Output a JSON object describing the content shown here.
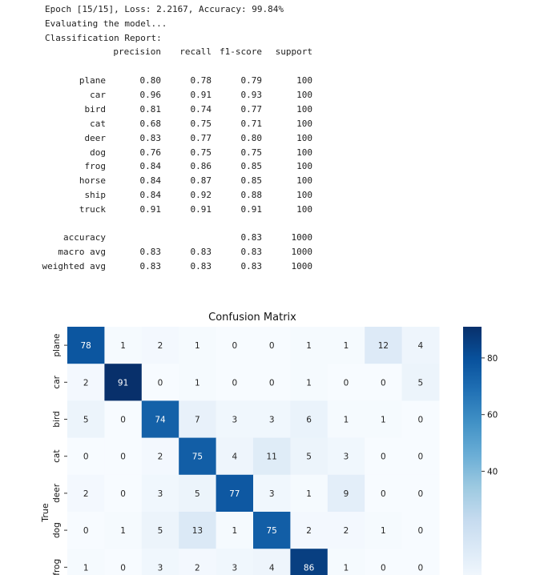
{
  "log": {
    "epoch_line": "Epoch [15/15], Loss: 2.2167, Accuracy: 99.84%",
    "eval_line": "Evaluating the model...",
    "report_title": "Classification Report:"
  },
  "report": {
    "headers": [
      "precision",
      "recall",
      "f1-score",
      "support"
    ],
    "class_rows": [
      {
        "label": "plane",
        "values": [
          "0.80",
          "0.78",
          "0.79",
          "100"
        ]
      },
      {
        "label": "car",
        "values": [
          "0.96",
          "0.91",
          "0.93",
          "100"
        ]
      },
      {
        "label": "bird",
        "values": [
          "0.81",
          "0.74",
          "0.77",
          "100"
        ]
      },
      {
        "label": "cat",
        "values": [
          "0.68",
          "0.75",
          "0.71",
          "100"
        ]
      },
      {
        "label": "deer",
        "values": [
          "0.83",
          "0.77",
          "0.80",
          "100"
        ]
      },
      {
        "label": "dog",
        "values": [
          "0.76",
          "0.75",
          "0.75",
          "100"
        ]
      },
      {
        "label": "frog",
        "values": [
          "0.84",
          "0.86",
          "0.85",
          "100"
        ]
      },
      {
        "label": "horse",
        "values": [
          "0.84",
          "0.87",
          "0.85",
          "100"
        ]
      },
      {
        "label": "ship",
        "values": [
          "0.84",
          "0.92",
          "0.88",
          "100"
        ]
      },
      {
        "label": "truck",
        "values": [
          "0.91",
          "0.91",
          "0.91",
          "100"
        ]
      }
    ],
    "summary_rows": [
      {
        "label": "accuracy",
        "values": [
          "",
          "",
          "0.83",
          "1000"
        ]
      },
      {
        "label": "macro avg",
        "values": [
          "0.83",
          "0.83",
          "0.83",
          "1000"
        ]
      },
      {
        "label": "weighted avg",
        "values": [
          "0.83",
          "0.83",
          "0.83",
          "1000"
        ]
      }
    ]
  },
  "chart_data": {
    "type": "heatmap",
    "title": "Confusion Matrix",
    "ylabel": "True",
    "xlabel": "",
    "row_labels": [
      "plane",
      "car",
      "bird",
      "cat",
      "deer",
      "dog",
      "frog"
    ],
    "matrix": [
      [
        78,
        1,
        2,
        1,
        0,
        0,
        1,
        1,
        12,
        4
      ],
      [
        2,
        91,
        0,
        1,
        0,
        0,
        1,
        0,
        0,
        5
      ],
      [
        5,
        0,
        74,
        7,
        3,
        3,
        6,
        1,
        1,
        0
      ],
      [
        0,
        0,
        2,
        75,
        4,
        11,
        5,
        3,
        0,
        0
      ],
      [
        2,
        0,
        3,
        5,
        77,
        3,
        1,
        9,
        0,
        0
      ],
      [
        0,
        1,
        5,
        13,
        1,
        75,
        2,
        2,
        1,
        0
      ],
      [
        1,
        0,
        3,
        2,
        3,
        4,
        86,
        1,
        0,
        0
      ]
    ],
    "colormap": "Blues",
    "vmin": 0,
    "vmax": 91,
    "colorbar_ticks": [
      40,
      60,
      80
    ]
  }
}
